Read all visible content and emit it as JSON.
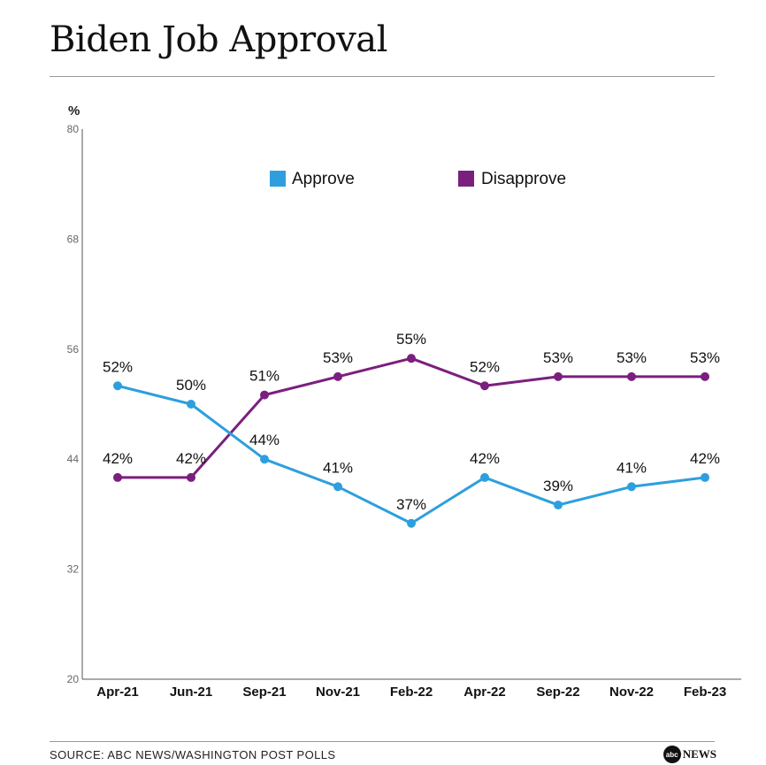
{
  "header": {
    "title": "Biden Job Approval"
  },
  "chart_data": {
    "type": "line",
    "title": "Biden Job Approval",
    "ylabel": "%",
    "xlabel": "",
    "ylim": [
      20,
      80
    ],
    "yticks": [
      20,
      32,
      44,
      56,
      68,
      80
    ],
    "categories": [
      "Apr-21",
      "Jun-21",
      "Sep-21",
      "Nov-21",
      "Feb-22",
      "Apr-22",
      "Sep-22",
      "Nov-22",
      "Feb-23"
    ],
    "series": [
      {
        "name": "Approve",
        "color": "#2e9fde",
        "values": [
          52,
          50,
          44,
          41,
          37,
          42,
          39,
          41,
          42
        ],
        "labels": [
          "52%",
          "50%",
          "44%",
          "41%",
          "37%",
          "42%",
          "39%",
          "41%",
          "42%"
        ]
      },
      {
        "name": "Disapprove",
        "color": "#7b1f7e",
        "values": [
          42,
          42,
          51,
          53,
          55,
          52,
          53,
          53,
          53
        ],
        "labels": [
          "42%",
          "42%",
          "51%",
          "53%",
          "55%",
          "52%",
          "53%",
          "53%",
          "53%"
        ]
      }
    ],
    "legend_position": "top"
  },
  "footer": {
    "source": "SOURCE: ABC NEWS/WASHINGTON POST POLLS",
    "logo_badge": "abc",
    "logo_text": "NEWS"
  }
}
